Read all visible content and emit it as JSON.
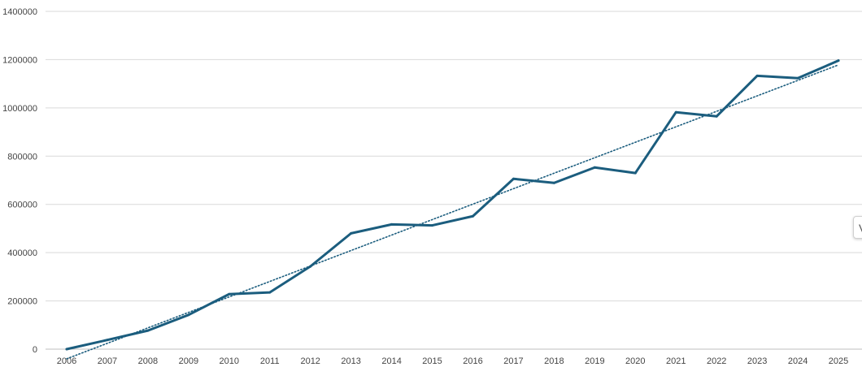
{
  "chart_data": {
    "type": "line",
    "title": "",
    "xlabel": "",
    "ylabel": "",
    "categories": [
      "2006",
      "2007",
      "2008",
      "2009",
      "2010",
      "2011",
      "2012",
      "2013",
      "2014",
      "2015",
      "2016",
      "2017",
      "2018",
      "2019",
      "2020",
      "2021",
      "2022",
      "2023",
      "2024",
      "2025"
    ],
    "series": [
      {
        "values": [
          0,
          38000,
          77000,
          142000,
          228000,
          235000,
          343000,
          480000,
          517000,
          513000,
          551000,
          706000,
          689000,
          753000,
          730000,
          982000,
          965000,
          1133000,
          1123000,
          1196000
        ],
        "color": "#1b5d7e"
      }
    ],
    "trendline": {
      "kind": "linear",
      "start": -40000,
      "end": 1178000,
      "color": "#1b5d7e",
      "style": "dotted"
    },
    "y_ticks": [
      "0",
      "200000",
      "400000",
      "600000",
      "800000",
      "1000000",
      "1200000",
      "1400000"
    ],
    "ylim": [
      0,
      1400000
    ],
    "grid": "horizontal",
    "legend": "none"
  },
  "edge_tab": {
    "icon": "collapsed-panel-icon",
    "label": "V"
  }
}
